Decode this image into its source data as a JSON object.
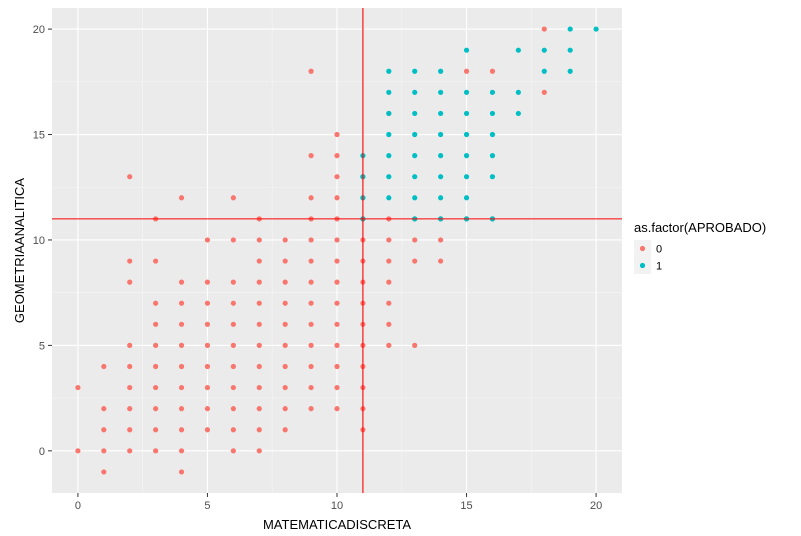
{
  "chart_data": {
    "type": "scatter",
    "xlabel": "MATEMATICADISCRETA",
    "ylabel": "GEOMETRIAANALITICA",
    "xlim": [
      -1,
      21
    ],
    "ylim": [
      -2,
      21
    ],
    "xticks": [
      0,
      5,
      10,
      15,
      20
    ],
    "yticks": [
      0,
      5,
      10,
      15,
      20
    ],
    "grid": true,
    "background": "#ebebeb",
    "reference_lines": {
      "vline_x": 11,
      "hline_y": 11,
      "color": "#ff0000"
    },
    "legend": {
      "title": "as.factor(APROBADO)",
      "position": "right",
      "entries": [
        {
          "label": "0",
          "color": "#f8766d"
        },
        {
          "label": "1",
          "color": "#00bfc4"
        }
      ]
    },
    "series": [
      {
        "key": "0",
        "color": "#f8766d",
        "points": [
          [
            0,
            0
          ],
          [
            0,
            3
          ],
          [
            1,
            -1
          ],
          [
            1,
            0
          ],
          [
            1,
            1
          ],
          [
            1,
            2
          ],
          [
            1,
            4
          ],
          [
            2,
            0
          ],
          [
            2,
            1
          ],
          [
            2,
            2
          ],
          [
            2,
            3
          ],
          [
            2,
            4
          ],
          [
            2,
            5
          ],
          [
            2,
            8
          ],
          [
            2,
            9
          ],
          [
            2,
            13
          ],
          [
            3,
            0
          ],
          [
            3,
            1
          ],
          [
            3,
            2
          ],
          [
            3,
            3
          ],
          [
            3,
            4
          ],
          [
            3,
            5
          ],
          [
            3,
            6
          ],
          [
            3,
            7
          ],
          [
            3,
            9
          ],
          [
            3,
            11
          ],
          [
            4,
            -1
          ],
          [
            4,
            0
          ],
          [
            4,
            1
          ],
          [
            4,
            2
          ],
          [
            4,
            3
          ],
          [
            4,
            4
          ],
          [
            4,
            5
          ],
          [
            4,
            6
          ],
          [
            4,
            7
          ],
          [
            4,
            8
          ],
          [
            4,
            12
          ],
          [
            5,
            1
          ],
          [
            5,
            2
          ],
          [
            5,
            3
          ],
          [
            5,
            4
          ],
          [
            5,
            5
          ],
          [
            5,
            6
          ],
          [
            5,
            7
          ],
          [
            5,
            8
          ],
          [
            5,
            10
          ],
          [
            6,
            0
          ],
          [
            6,
            1
          ],
          [
            6,
            2
          ],
          [
            6,
            3
          ],
          [
            6,
            4
          ],
          [
            6,
            5
          ],
          [
            6,
            6
          ],
          [
            6,
            7
          ],
          [
            6,
            8
          ],
          [
            6,
            10
          ],
          [
            6,
            12
          ],
          [
            7,
            0
          ],
          [
            7,
            1
          ],
          [
            7,
            2
          ],
          [
            7,
            3
          ],
          [
            7,
            4
          ],
          [
            7,
            5
          ],
          [
            7,
            6
          ],
          [
            7,
            7
          ],
          [
            7,
            8
          ],
          [
            7,
            9
          ],
          [
            7,
            10
          ],
          [
            7,
            11
          ],
          [
            8,
            1
          ],
          [
            8,
            2
          ],
          [
            8,
            3
          ],
          [
            8,
            4
          ],
          [
            8,
            5
          ],
          [
            8,
            6
          ],
          [
            8,
            7
          ],
          [
            8,
            8
          ],
          [
            8,
            9
          ],
          [
            8,
            10
          ],
          [
            9,
            2
          ],
          [
            9,
            3
          ],
          [
            9,
            4
          ],
          [
            9,
            5
          ],
          [
            9,
            6
          ],
          [
            9,
            7
          ],
          [
            9,
            8
          ],
          [
            9,
            9
          ],
          [
            9,
            10
          ],
          [
            9,
            11
          ],
          [
            9,
            12
          ],
          [
            9,
            14
          ],
          [
            9,
            18
          ],
          [
            10,
            2
          ],
          [
            10,
            3
          ],
          [
            10,
            4
          ],
          [
            10,
            5
          ],
          [
            10,
            6
          ],
          [
            10,
            7
          ],
          [
            10,
            8
          ],
          [
            10,
            9
          ],
          [
            10,
            10
          ],
          [
            10,
            11
          ],
          [
            10,
            12
          ],
          [
            10,
            13
          ],
          [
            10,
            14
          ],
          [
            10,
            15
          ],
          [
            11,
            1
          ],
          [
            11,
            2
          ],
          [
            11,
            3
          ],
          [
            11,
            4
          ],
          [
            11,
            5
          ],
          [
            11,
            6
          ],
          [
            11,
            7
          ],
          [
            11,
            8
          ],
          [
            11,
            9
          ],
          [
            11,
            10
          ],
          [
            11,
            11
          ],
          [
            11,
            12
          ],
          [
            11,
            13
          ],
          [
            12,
            5
          ],
          [
            12,
            6
          ],
          [
            12,
            7
          ],
          [
            12,
            8
          ],
          [
            12,
            9
          ],
          [
            12,
            10
          ],
          [
            12,
            11
          ],
          [
            12,
            16
          ],
          [
            13,
            5
          ],
          [
            13,
            9
          ],
          [
            13,
            10
          ],
          [
            13,
            11
          ],
          [
            14,
            9
          ],
          [
            14,
            10
          ],
          [
            14,
            11
          ],
          [
            15,
            11
          ],
          [
            15,
            18
          ],
          [
            16,
            11
          ],
          [
            16,
            18
          ],
          [
            18,
            17
          ],
          [
            18,
            20
          ]
        ]
      },
      {
        "key": "1",
        "color": "#00bfc4",
        "points": [
          [
            11,
            11
          ],
          [
            11,
            12
          ],
          [
            11,
            13
          ],
          [
            11,
            14
          ],
          [
            12,
            12
          ],
          [
            12,
            13
          ],
          [
            12,
            14
          ],
          [
            12,
            15
          ],
          [
            12,
            16
          ],
          [
            12,
            17
          ],
          [
            12,
            18
          ],
          [
            13,
            11
          ],
          [
            13,
            12
          ],
          [
            13,
            13
          ],
          [
            13,
            14
          ],
          [
            13,
            15
          ],
          [
            13,
            16
          ],
          [
            13,
            17
          ],
          [
            13,
            18
          ],
          [
            14,
            11
          ],
          [
            14,
            12
          ],
          [
            14,
            13
          ],
          [
            14,
            14
          ],
          [
            14,
            15
          ],
          [
            14,
            16
          ],
          [
            14,
            17
          ],
          [
            14,
            18
          ],
          [
            15,
            11
          ],
          [
            15,
            12
          ],
          [
            15,
            13
          ],
          [
            15,
            14
          ],
          [
            15,
            15
          ],
          [
            15,
            16
          ],
          [
            15,
            17
          ],
          [
            15,
            19
          ],
          [
            16,
            11
          ],
          [
            16,
            13
          ],
          [
            16,
            14
          ],
          [
            16,
            15
          ],
          [
            16,
            16
          ],
          [
            16,
            17
          ],
          [
            17,
            16
          ],
          [
            17,
            17
          ],
          [
            17,
            19
          ],
          [
            18,
            18
          ],
          [
            18,
            19
          ],
          [
            19,
            18
          ],
          [
            19,
            19
          ],
          [
            19,
            20
          ],
          [
            20,
            20
          ]
        ]
      }
    ]
  }
}
